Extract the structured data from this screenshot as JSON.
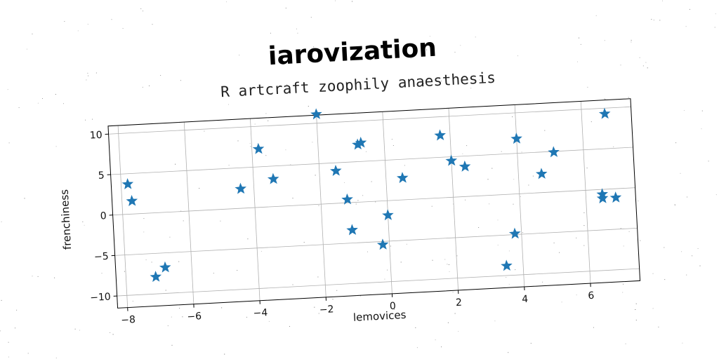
{
  "chart_data": {
    "type": "scatter",
    "title": "iarovization",
    "subtitle": "R artcraft zoophily anaesthesis",
    "xlabel": "lemovices",
    "ylabel": "frenchiness",
    "xlim": [
      -8.3,
      7.5
    ],
    "ylim": [
      -11.5,
      11
    ],
    "xticks": [
      -8,
      -6,
      -4,
      -2,
      0,
      2,
      4,
      6
    ],
    "yticks": [
      -10,
      -5,
      0,
      5,
      10
    ],
    "grid": true,
    "marker": "star",
    "color": "#1f77b4",
    "series": [
      {
        "x": [
          -7.8,
          -7.7,
          -7.1,
          -6.8,
          -4.4,
          -3.8,
          -3.4,
          -2.0,
          -1.5,
          -1.2,
          -1.1,
          -0.8,
          -0.7,
          -0.2,
          0.0,
          0.5,
          1.7,
          2.0,
          2.4,
          3.5,
          3.8,
          4.0,
          4.7,
          5.1,
          6.5,
          6.5,
          6.7,
          6.9
        ],
        "y": [
          3.7,
          1.6,
          -7.9,
          -6.8,
          2.4,
          7.2,
          3.4,
          11.1,
          4.0,
          0.4,
          -3.4,
          7.1,
          7.3,
          -5.4,
          -1.8,
          2.7,
          7.7,
          4.5,
          3.7,
          -8.8,
          -4.9,
          6.8,
          2.3,
          4.9,
          -0.6,
          -1.1,
          9.3,
          -1.1
        ]
      }
    ]
  }
}
